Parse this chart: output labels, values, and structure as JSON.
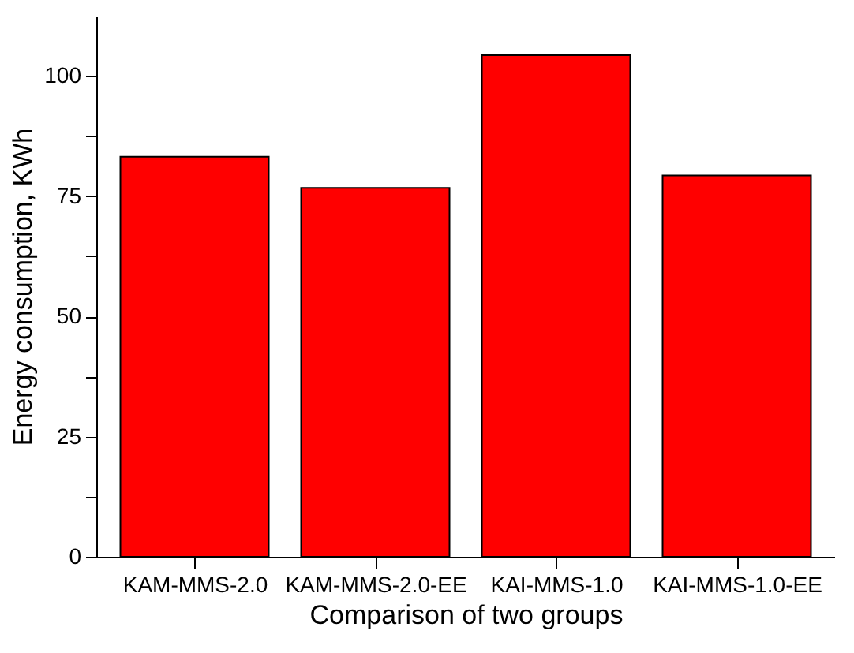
{
  "chart_data": {
    "type": "bar",
    "xlabel": "Comparison of two groups",
    "ylabel": "Energy consumption, KWh",
    "categories": [
      "KAM-MMS-2.0",
      "KAM-MMS-2.0-EE",
      "KAI-MMS-1.0",
      "KAI-MMS-1.0-EE"
    ],
    "values": [
      83.2,
      76.7,
      104.3,
      79.3
    ],
    "color": "#ff0000",
    "ylim": [
      0,
      112.5
    ],
    "yticks": [
      0,
      {
        "value": 12.5,
        "label": null
      },
      25,
      {
        "value": 37.5,
        "label": null
      },
      50,
      {
        "value": 62.5,
        "label": null
      },
      75,
      {
        "value": 87.5,
        "label": null
      },
      100
    ],
    "grid": false
  }
}
